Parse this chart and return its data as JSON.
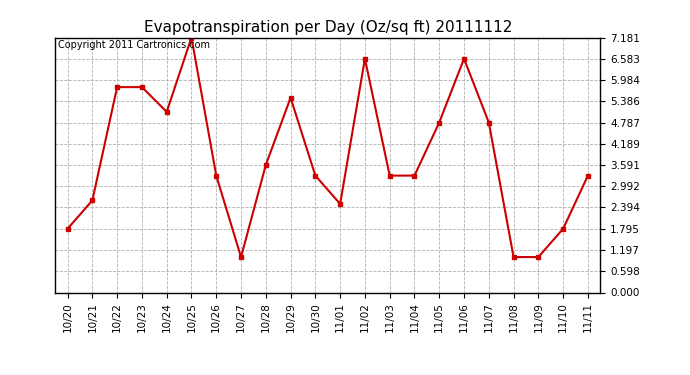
{
  "title": "Evapotranspiration per Day (Oz/sq ft) 20111112",
  "copyright": "Copyright 2011 Cartronics.com",
  "x_labels": [
    "10/20",
    "10/21",
    "10/22",
    "10/23",
    "10/24",
    "10/25",
    "10/26",
    "10/27",
    "10/28",
    "10/29",
    "10/30",
    "11/01",
    "11/02",
    "11/03",
    "11/04",
    "11/05",
    "11/06",
    "11/07",
    "11/08",
    "11/09",
    "11/10",
    "11/11"
  ],
  "y_values": [
    1.795,
    2.594,
    5.784,
    5.784,
    5.087,
    7.181,
    3.292,
    0.998,
    3.591,
    5.484,
    3.292,
    2.494,
    6.583,
    3.292,
    3.292,
    4.787,
    6.583,
    4.787,
    0.998,
    0.998,
    1.795,
    3.292
  ],
  "y_ticks": [
    0.0,
    0.598,
    1.197,
    1.795,
    2.394,
    2.992,
    3.591,
    4.189,
    4.787,
    5.386,
    5.984,
    6.583,
    7.181
  ],
  "line_color": "#cc0000",
  "marker": "s",
  "marker_size": 3,
  "background_color": "#ffffff",
  "grid_color": "#b0b0b0",
  "title_fontsize": 11,
  "tick_fontsize": 7.5,
  "copyright_fontsize": 7,
  "ylim": [
    0.0,
    7.181
  ]
}
